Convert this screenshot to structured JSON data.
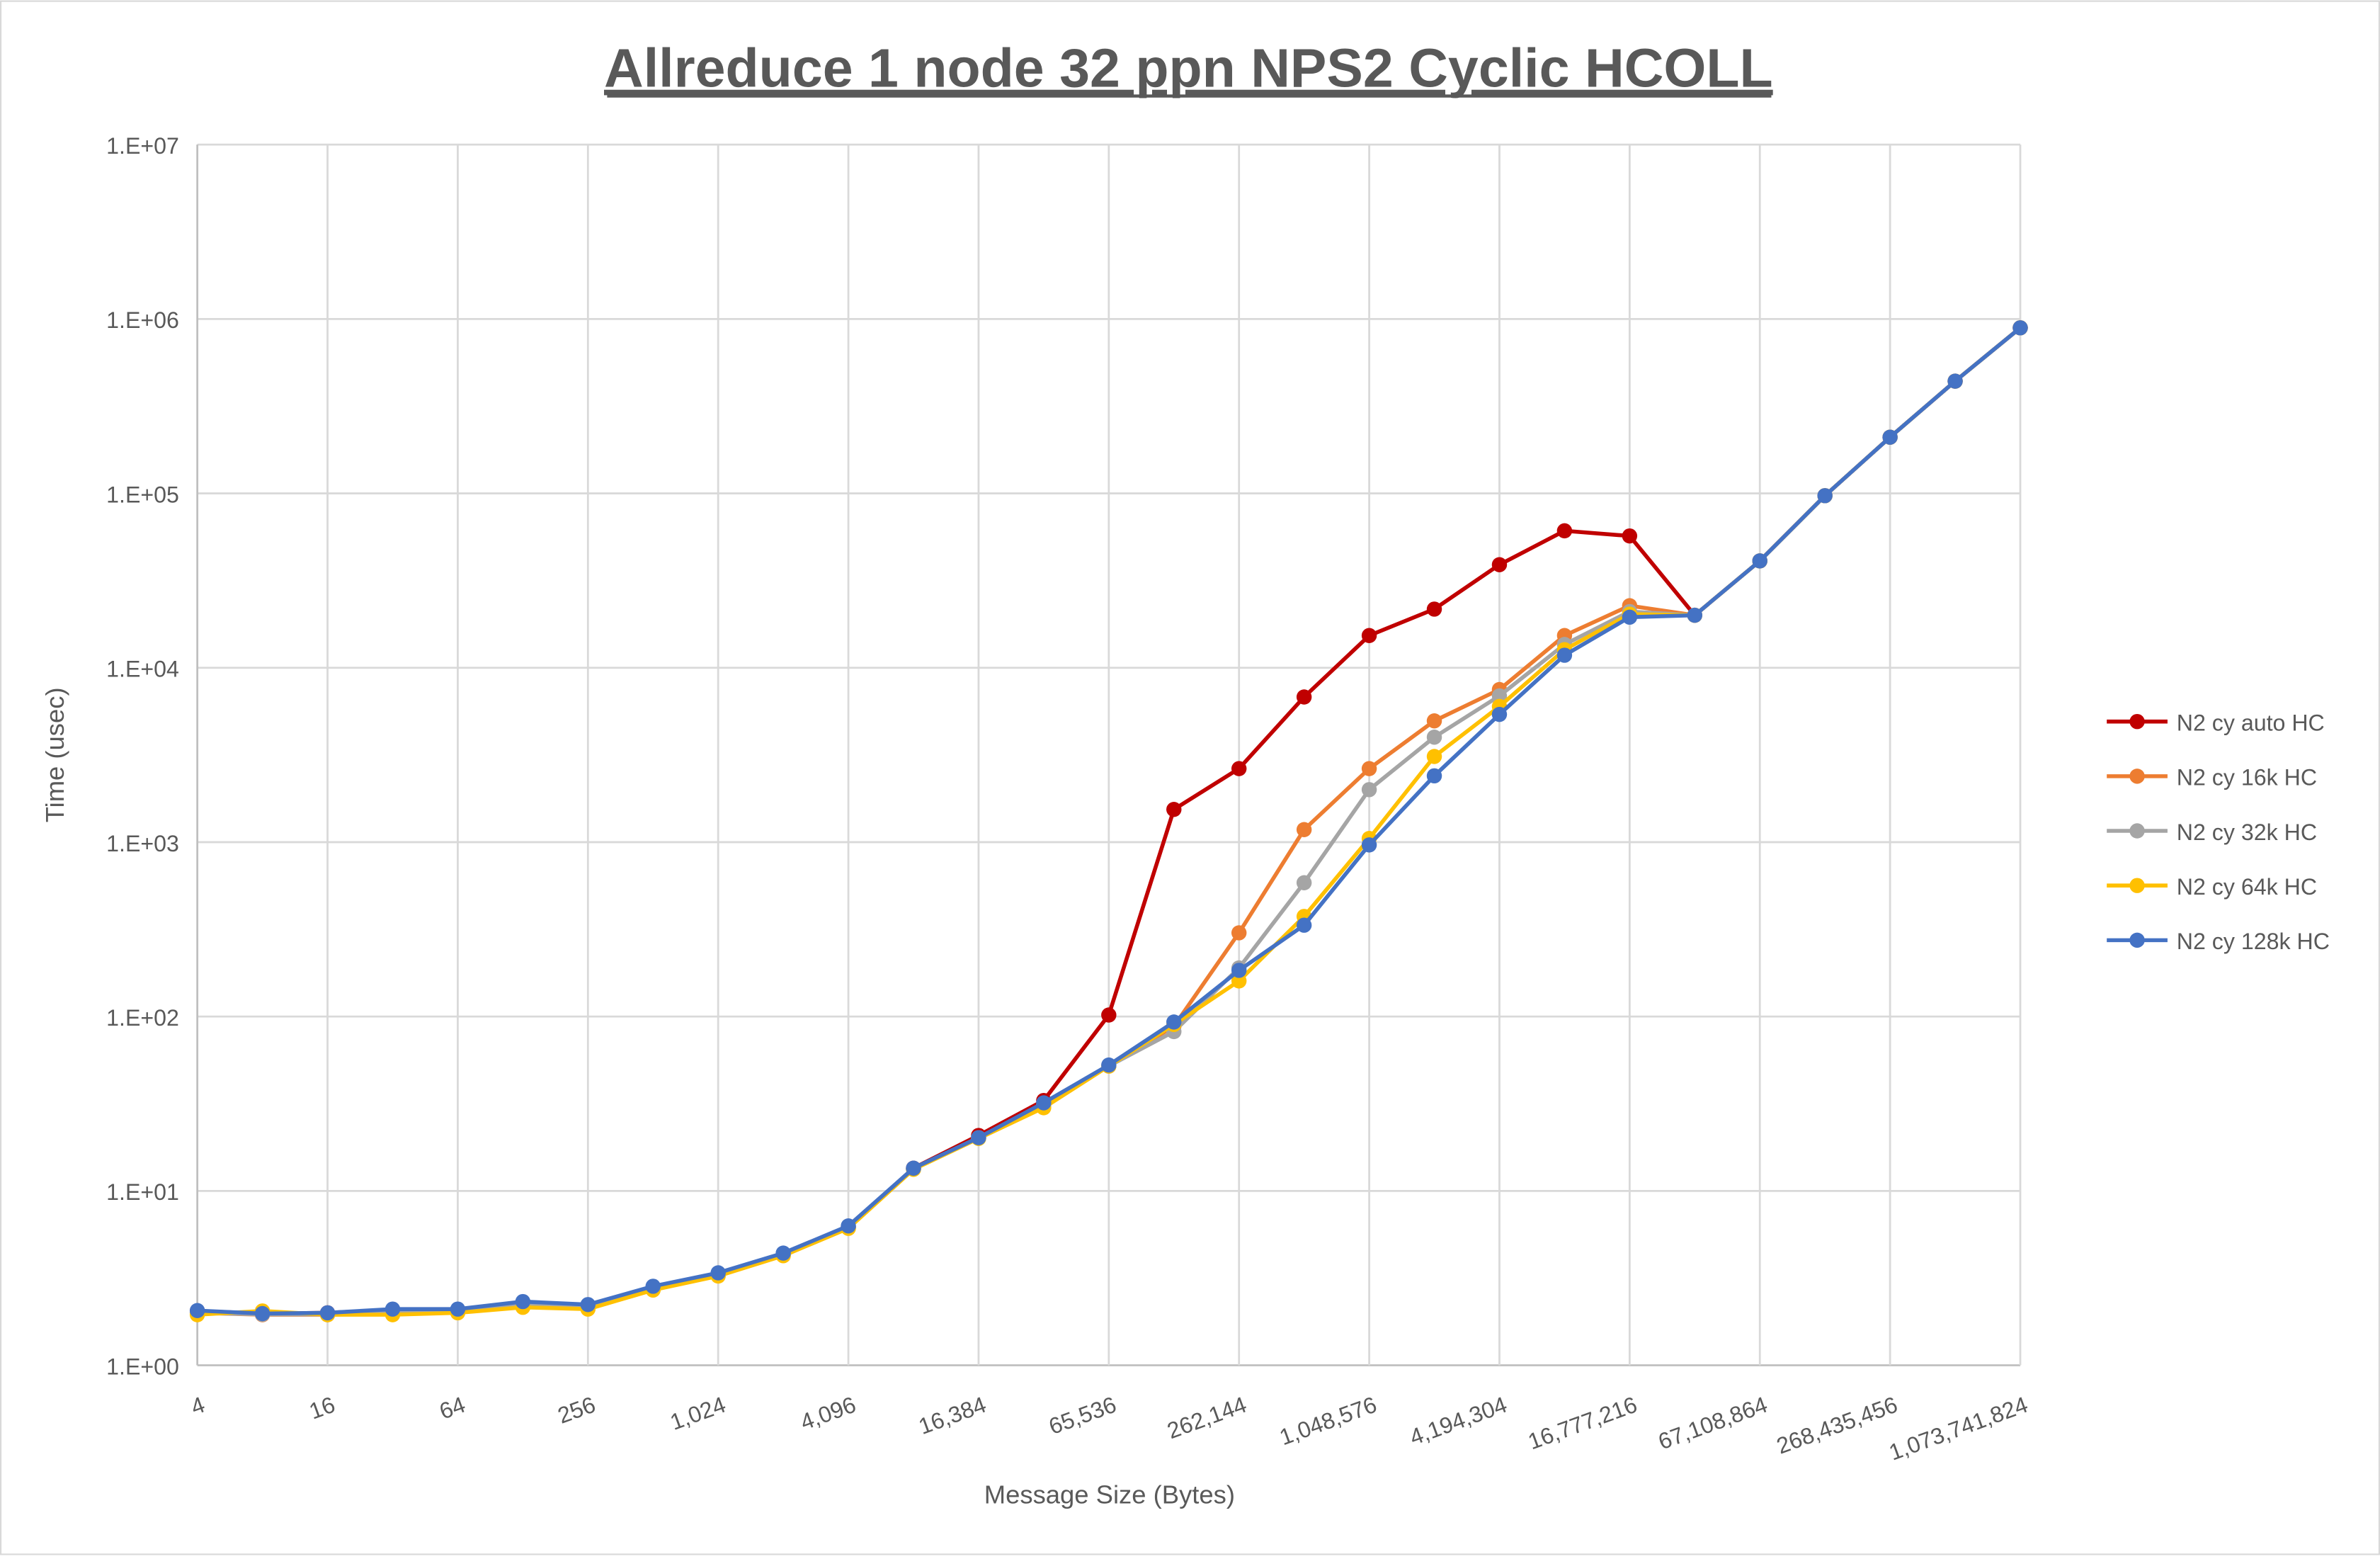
{
  "chart_data": {
    "type": "line",
    "title": "Allreduce 1 node 32 ppn NPS2 Cyclic HCOLL",
    "xlabel": "Message Size (Bytes)",
    "ylabel": "Time (usec)",
    "x_scale": "log2",
    "y_scale": "log10",
    "ylim": [
      1,
      10000000
    ],
    "grid": true,
    "legend_position": "right",
    "x": [
      4,
      8,
      16,
      32,
      64,
      128,
      256,
      512,
      1024,
      2048,
      4096,
      8192,
      16384,
      32768,
      65536,
      131072,
      262144,
      524288,
      1048576,
      2097152,
      4194304,
      8388608,
      16777216,
      33554432,
      67108864,
      134217728,
      268435456,
      536870912,
      1073741824
    ],
    "x_tick_labels": [
      "4",
      "16",
      "64",
      "256",
      "1,024",
      "4,096",
      "16,384",
      "65,536",
      "262,144",
      "1,048,576",
      "4,194,304",
      "16,777,216",
      "67,108,864",
      "268,435,456",
      "1,073,741,824"
    ],
    "y_tick_labels": [
      "1.E+00",
      "1.E+01",
      "1.E+02",
      "1.E+03",
      "1.E+04",
      "1.E+05",
      "1.E+06",
      "1.E+07"
    ],
    "series": [
      {
        "name": "N2 cy auto HC",
        "color": "#C00000",
        "values": [
          2.05,
          1.98,
          2.0,
          2.08,
          2.08,
          2.3,
          2.2,
          2.8,
          3.35,
          4.35,
          6.2,
          13.5,
          20.8,
          33,
          102,
          1540,
          2640,
          6800,
          15300,
          21700,
          39000,
          61000,
          57000,
          20000,
          41000,
          97000,
          210000,
          440000,
          890000
        ]
      },
      {
        "name": "N2 cy 16k HC",
        "color": "#ED7D31",
        "values": [
          2.0,
          1.95,
          1.95,
          1.98,
          2.05,
          2.2,
          2.12,
          2.72,
          3.3,
          4.3,
          6.2,
          13.4,
          20.2,
          31,
          52,
          88,
          302,
          1180,
          2640,
          4960,
          7500,
          15300,
          22700,
          20000,
          41000,
          97000,
          210000,
          440000,
          890000
        ]
      },
      {
        "name": "N2 cy 32k HC",
        "color": "#A5A5A5",
        "values": [
          2.0,
          1.96,
          1.96,
          2.0,
          2.05,
          2.22,
          2.15,
          2.75,
          3.3,
          4.3,
          6.2,
          13.4,
          20.2,
          31,
          52,
          82,
          190,
          585,
          2000,
          4000,
          6900,
          13600,
          21000,
          20000,
          41000,
          97000,
          210000,
          440000,
          890000
        ]
      },
      {
        "name": "N2 cy 64k HC",
        "color": "#FFC000",
        "values": [
          1.95,
          2.05,
          1.95,
          1.95,
          2.0,
          2.15,
          2.1,
          2.7,
          3.25,
          4.25,
          6.1,
          13.3,
          20.0,
          30,
          52,
          90,
          160,
          375,
          1050,
          3100,
          6000,
          12700,
          20300,
          20000,
          41000,
          97000,
          210000,
          440000,
          890000
        ]
      },
      {
        "name": "N2 cy 128k HC",
        "color": "#4472C4",
        "values": [
          2.06,
          1.98,
          2.0,
          2.1,
          2.1,
          2.32,
          2.23,
          2.84,
          3.39,
          4.4,
          6.3,
          13.5,
          20.2,
          32,
          52.7,
          93,
          184,
          334,
          964,
          2400,
          5400,
          11800,
          19500,
          20000,
          41000,
          97000,
          210000,
          440000,
          890000
        ]
      }
    ]
  }
}
